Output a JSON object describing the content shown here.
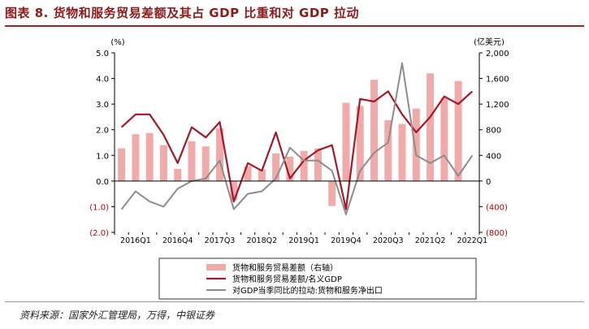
{
  "title": "图表 8. 货物和服务贸易差额及其占 GDP 比重和对 GDP 拉动",
  "source": "资料来源：国家外汇管理局，万得，中银证券",
  "chart_data": {
    "type": "bar",
    "left_unit": "(%)",
    "right_unit": "(亿美元)",
    "left_ylim": [
      -2.0,
      5.0
    ],
    "right_ylim": [
      -800,
      2000
    ],
    "left_ticks": [
      "5.0",
      "4.0",
      "3.0",
      "2.0",
      "1.0",
      "0.0",
      "(1.0)",
      "(2.0)"
    ],
    "right_ticks": [
      "2,000",
      "1,600",
      "1,200",
      "800",
      "400",
      "0",
      "(400)",
      "(800)"
    ],
    "x_tick_labels": [
      "2016Q1",
      "2016Q4",
      "2017Q3",
      "2018Q2",
      "2019Q1",
      "2019Q4",
      "2020Q3",
      "2021Q2",
      "2022Q1"
    ],
    "categories": [
      "2016Q1",
      "2016Q2",
      "2016Q3",
      "2016Q4",
      "2017Q1",
      "2017Q2",
      "2017Q3",
      "2017Q4",
      "2018Q1",
      "2018Q2",
      "2018Q3",
      "2018Q4",
      "2019Q1",
      "2019Q2",
      "2019Q3",
      "2019Q4",
      "2020Q1",
      "2020Q2",
      "2020Q3",
      "2020Q4",
      "2021Q1",
      "2021Q2",
      "2021Q3",
      "2021Q4",
      "2022Q1",
      "2022Q2"
    ],
    "series": [
      {
        "name": "货物和服务贸易差额（右轴）",
        "type": "bar",
        "axis": "right",
        "color": "#f0aaaa",
        "values": [
          510,
          730,
          750,
          560,
          190,
          620,
          540,
          820,
          -300,
          230,
          180,
          430,
          380,
          470,
          510,
          -390,
          1220,
          1170,
          1580,
          950,
          890,
          1130,
          1680,
          1290,
          1560,
          0
        ]
      },
      {
        "name": "货物和服务贸易差额/名义GDP",
        "type": "line",
        "axis": "left",
        "color": "#a5172a",
        "values": [
          2.1,
          2.6,
          2.6,
          1.8,
          0.7,
          2.1,
          1.7,
          2.3,
          -0.8,
          0.7,
          0.4,
          1.9,
          0.1,
          0.8,
          1.2,
          1.4,
          -1.1,
          3.2,
          3.1,
          3.5,
          2.6,
          1.9,
          2.5,
          3.3,
          3.0,
          3.5
        ]
      },
      {
        "name": "对GDP当季同比的拉动:货物和服务净出口",
        "type": "line",
        "axis": "left",
        "color": "#8c8c8c",
        "values": [
          -1.1,
          -0.4,
          -0.8,
          -1.0,
          -0.3,
          0.0,
          0.1,
          0.8,
          -1.1,
          -0.5,
          -0.4,
          0.1,
          1.3,
          0.8,
          0.8,
          0.4,
          -1.3,
          0.4,
          1.1,
          1.5,
          4.6,
          1.0,
          0.7,
          1.0,
          0.2,
          1.0
        ]
      }
    ],
    "legend_position": "bottom"
  }
}
